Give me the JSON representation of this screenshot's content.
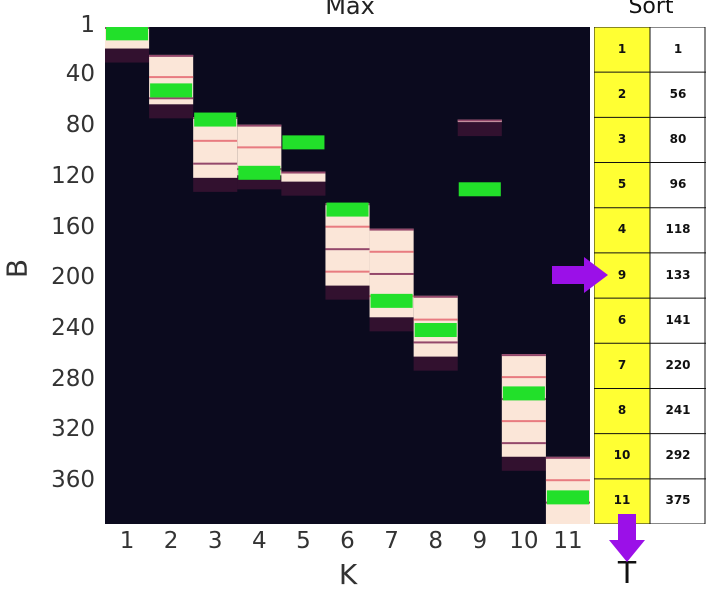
{
  "chart_data": {
    "type": "heatmap",
    "title": "Max",
    "xlabel": "K",
    "ylabel": "B",
    "x_ticks": [
      "1",
      "2",
      "3",
      "4",
      "5",
      "6",
      "7",
      "8",
      "9",
      "10",
      "11"
    ],
    "y_ticks": [
      "1",
      "40",
      "80",
      "120",
      "160",
      "200",
      "240",
      "280",
      "320",
      "360"
    ],
    "ylim": [
      1,
      393
    ],
    "max_markers": [
      {
        "k": 1,
        "b": 6
      },
      {
        "k": 2,
        "b": 51
      },
      {
        "k": 3,
        "b": 74
      },
      {
        "k": 4,
        "b": 116
      },
      {
        "k": 5,
        "b": 92
      },
      {
        "k": 6,
        "b": 145
      },
      {
        "k": 7,
        "b": 217
      },
      {
        "k": 8,
        "b": 240
      },
      {
        "k": 9,
        "b": 129
      },
      {
        "k": 10,
        "b": 290
      },
      {
        "k": 11,
        "b": 372
      }
    ],
    "bright_blocks": [
      {
        "k": 1,
        "b0": 1,
        "b1": 18
      },
      {
        "k": 2,
        "b0": 23,
        "b1": 62
      },
      {
        "k": 3,
        "b0": 72,
        "b1": 120
      },
      {
        "k": 4,
        "b0": 78,
        "b1": 118
      },
      {
        "k": 5,
        "b0": 115,
        "b1": 123
      },
      {
        "k": 6,
        "b0": 140,
        "b1": 205
      },
      {
        "k": 7,
        "b0": 160,
        "b1": 230
      },
      {
        "k": 8,
        "b0": 213,
        "b1": 261
      },
      {
        "k": 9,
        "b0": 74,
        "b1": 76
      },
      {
        "k": 10,
        "b0": 259,
        "b1": 340
      },
      {
        "k": 11,
        "b0": 340,
        "b1": 393
      }
    ],
    "colors": {
      "background": "#0b0a1e",
      "bright": "#fbe6d8",
      "mid": "#e4606a",
      "dark": "#7a2050",
      "marker": "#22e02a"
    }
  },
  "sort_table": {
    "header": "Sort",
    "rows": [
      {
        "k": "1",
        "b": "1"
      },
      {
        "k": "2",
        "b": "56"
      },
      {
        "k": "3",
        "b": "80"
      },
      {
        "k": "5",
        "b": "96"
      },
      {
        "k": "4",
        "b": "118"
      },
      {
        "k": "9",
        "b": "133"
      },
      {
        "k": "6",
        "b": "141"
      },
      {
        "k": "7",
        "b": "220"
      },
      {
        "k": "8",
        "b": "241"
      },
      {
        "k": "10",
        "b": "292"
      },
      {
        "k": "11",
        "b": "375"
      }
    ],
    "highlight_row": 5,
    "output_label": "T",
    "colors": {
      "key_bg": "#ffff33",
      "arrow": "#9b10e8"
    }
  }
}
